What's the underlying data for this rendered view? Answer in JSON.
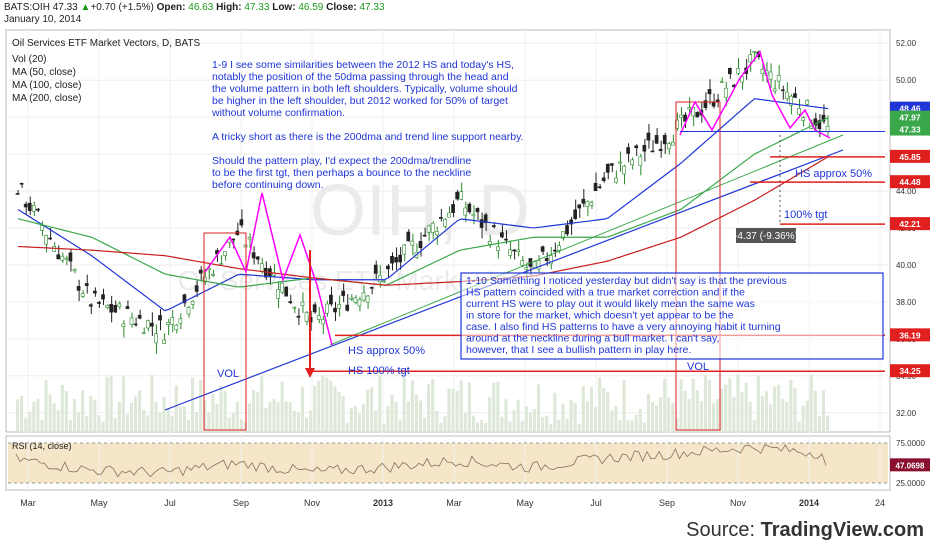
{
  "header": {
    "symbol": "BATS:OIH",
    "last": "47.33",
    "change_arrow": "▲",
    "change": "+0.70 (+1.5%)",
    "open_label": "Open:",
    "open": "46.63",
    "high_label": "High:",
    "high": "47.33",
    "low_label": "Low:",
    "low": "46.59",
    "close_label": "Close:",
    "close": "47.33",
    "date": "January 10, 2014"
  },
  "legend": {
    "title": "Oil Services ETF Market Vectors, D, BATS",
    "items": [
      "Vol (20)",
      "MA (50, close)",
      "MA (100, close)",
      "MA (200, close)"
    ]
  },
  "watermark": {
    "big": "OIH, D",
    "small": "Oil Services ETF Market Vectors"
  },
  "annotations": {
    "note1": [
      "1-9 I see some similarities between the 2012 HS and today's HS,",
      "notably the position of the 50dma passing through the head and",
      "the volume pattern in both left shoulders.  Typically, volume should",
      "be higher in the left shoulder, but 2012 worked for 50% of target",
      "without volume confirmation.",
      "",
      "A tricky short as there is the 200dma and trend line support nearby.",
      "",
      "Should the pattern play, I'd expect the 200dma/trendline",
      "to be the first tgt, then perhaps a bounce to the neckline",
      "before continuing down."
    ],
    "note2": [
      "1-10 Something I noticed yesterday but didn't say is that the previous",
      "HS pattern coincided with a true market correction and if the",
      "current HS were to play out it would likely mean the same was",
      "in store for the market, which doesn't yet appear to be the",
      "case.  I also find HS patterns to have a very annoying habit it turning",
      "around at the neckline during a bull market.  I can't say,",
      "however, that I see a bullish pattern in play here."
    ],
    "hs50_right": "HS approx 50%",
    "tgt100_right": "100% tgt",
    "measure": "-4.37 (-9.36%)",
    "hs50_left": "HS approx 50%",
    "hs100_left": "HS 100% tgt",
    "vol_left": "VOL",
    "vol_right": "VOL"
  },
  "price_axis": {
    "ticks": [
      "52.00",
      "50.00",
      "48.00",
      "46.00",
      "44.00",
      "42.00",
      "40.00",
      "38.00",
      "36.00",
      "34.00",
      "32.00"
    ],
    "labels": [
      {
        "text": "48.46",
        "color": "#1f35d6"
      },
      {
        "text": "47.97",
        "color": "#3aa84a"
      },
      {
        "text": "47.33",
        "color": "#3aa84a"
      },
      {
        "text": "45.85",
        "color": "#e01f1f"
      },
      {
        "text": "44.48",
        "color": "#e01f1f"
      },
      {
        "text": "42.21",
        "color": "#e01f1f"
      },
      {
        "text": "36.19",
        "color": "#e01f1f"
      },
      {
        "text": "34.25",
        "color": "#e01f1f"
      }
    ]
  },
  "rsi": {
    "label": "RSI (14, close)",
    "ticks": [
      "75.0000",
      "25.0000"
    ],
    "value": "47.0698"
  },
  "time_axis": [
    "Mar",
    "May",
    "Jul",
    "Sep",
    "Nov",
    "2013",
    "Mar",
    "May",
    "Jul",
    "Sep",
    "Nov",
    "2014",
    "24"
  ],
  "source": {
    "prefix": "Source: ",
    "brand": "TradingView.com"
  },
  "colors": {
    "price_up": "#2a8a2a",
    "price_down": "#222",
    "ma50": "#1f35d6",
    "ma100": "#3aa84a",
    "ma200": "#c81e1e",
    "annotation": "#1f35d6",
    "target": "#e01f1f",
    "pattern": "#ff00ff"
  },
  "chart_data": {
    "type": "line",
    "title": "Oil Services ETF Market Vectors, D, BATS",
    "x": [
      "Mar",
      "May",
      "Jul",
      "Sep",
      "Nov",
      "2013",
      "Mar",
      "May",
      "Jul",
      "Sep",
      "Nov",
      "2014"
    ],
    "series": [
      {
        "name": "close",
        "values": [
          44.2,
          38.0,
          36.5,
          41.8,
          36.8,
          39.5,
          43.5,
          39.5,
          44.8,
          47.5,
          51.0,
          47.33
        ]
      },
      {
        "name": "MA (50, close)",
        "values": [
          43.0,
          40.5,
          37.5,
          39.5,
          39.2,
          39.2,
          42.5,
          42.0,
          42.5,
          45.5,
          49.0,
          48.46
        ]
      },
      {
        "name": "MA (100, close)",
        "values": [
          42.5,
          41.5,
          39.5,
          38.8,
          39.3,
          38.9,
          40.8,
          41.5,
          41.5,
          43.0,
          46.0,
          47.97
        ]
      },
      {
        "name": "MA (200, close)",
        "values": [
          41.0,
          40.8,
          40.5,
          39.8,
          39.3,
          38.9,
          39.1,
          39.4,
          40.2,
          41.5,
          43.5,
          45.85
        ]
      }
    ],
    "ylim": [
      31.5,
      52.5
    ],
    "rsi_range": [
      25,
      75
    ],
    "rsi_last": 47.0698,
    "levels": [
      48.46,
      47.97,
      47.33,
      45.85,
      44.48,
      42.21,
      36.19,
      34.25
    ]
  }
}
